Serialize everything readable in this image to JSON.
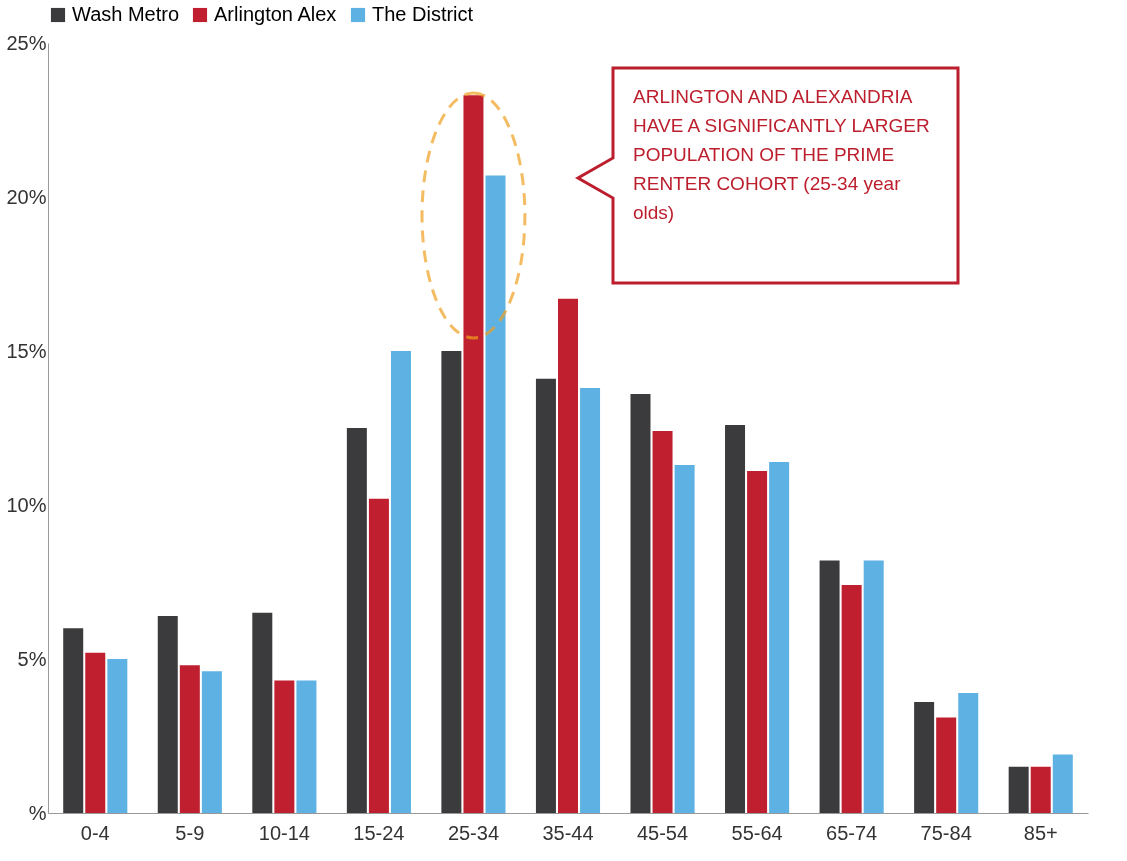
{
  "chart_data": {
    "type": "bar",
    "categories": [
      "0-4",
      "5-9",
      "10-14",
      "15-24",
      "25-34",
      "35-44",
      "45-54",
      "55-64",
      "65-74",
      "75-84",
      "85+"
    ],
    "series": [
      {
        "name": "Wash Metro",
        "color": "#3b3b3d",
        "values": [
          6.0,
          6.4,
          6.5,
          12.5,
          15.0,
          14.1,
          13.6,
          12.6,
          8.2,
          3.6,
          1.5
        ]
      },
      {
        "name": "Arlington Alex",
        "color": "#c01f2f",
        "values": [
          5.2,
          4.8,
          4.3,
          10.2,
          23.3,
          16.7,
          12.4,
          11.1,
          7.4,
          3.1,
          1.5
        ]
      },
      {
        "name": "The District",
        "color": "#5db2e3",
        "values": [
          5.0,
          4.6,
          4.3,
          15.0,
          20.7,
          13.8,
          11.3,
          11.4,
          8.2,
          3.9,
          1.9
        ]
      }
    ],
    "ylim": [
      0,
      25
    ],
    "yticks": [
      {
        "value": 0,
        "label": "%"
      },
      {
        "value": 5,
        "label": "5%"
      },
      {
        "value": 10,
        "label": "10%"
      },
      {
        "value": 15,
        "label": "15%"
      },
      {
        "value": 20,
        "label": "20%"
      },
      {
        "value": 25,
        "label": "25%"
      }
    ],
    "grid": false,
    "legend": "top",
    "annotations": [
      "ARLINGTON AND ALEXANDRIA HAVE A SIGNIFICANTLY LARGER POPULATION OF THE PRIME RENTER COHORT (25-34 year olds)"
    ]
  }
}
